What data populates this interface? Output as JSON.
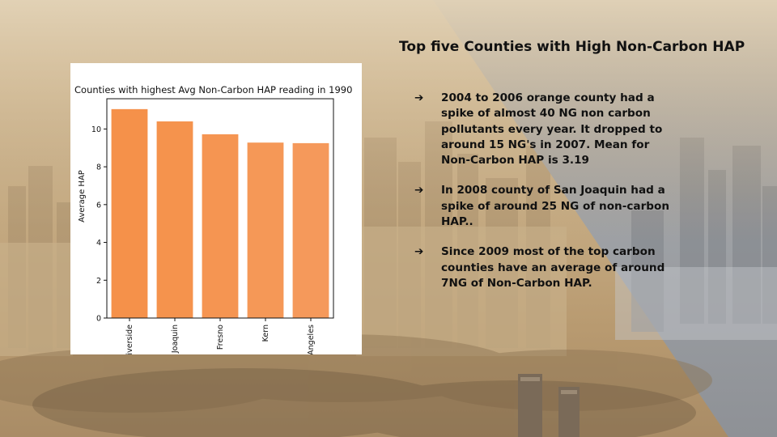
{
  "slide": {
    "title": "Top five Counties with High Non-Carbon HAP",
    "bullet_icon": "right-arrow-icon",
    "bullets": [
      "2004 to 2006 orange county had a spike of almost 40 NG non carbon pollutants every year. It dropped to around 15 NG's in 2007. Mean for Non-Carbon HAP is 3.19",
      "In 2008 county of San Joaquin had a spike of around 25 NG of non-carbon HAP..",
      "Since 2009 most of the top carbon counties have an average of around 7NG of Non-Carbon HAP."
    ]
  },
  "chart_data": {
    "type": "bar",
    "title": "Counties with highest Avg Non-Carbon HAP reading in 1990",
    "xlabel": "",
    "ylabel": "Average HAP",
    "categories": [
      "Riverside",
      "San Joaquin",
      "Fresno",
      "Kern",
      "Los Angeles"
    ],
    "values": [
      11.05,
      10.4,
      9.72,
      9.28,
      9.25
    ],
    "ylim": [
      0,
      11.6
    ],
    "yticks": [
      0,
      2,
      4,
      6,
      8,
      10
    ],
    "bar_colors": [
      "#f5914a",
      "#f5934d",
      "#f59552",
      "#f59857",
      "#f5995b"
    ],
    "grid": false,
    "legend": "none"
  }
}
